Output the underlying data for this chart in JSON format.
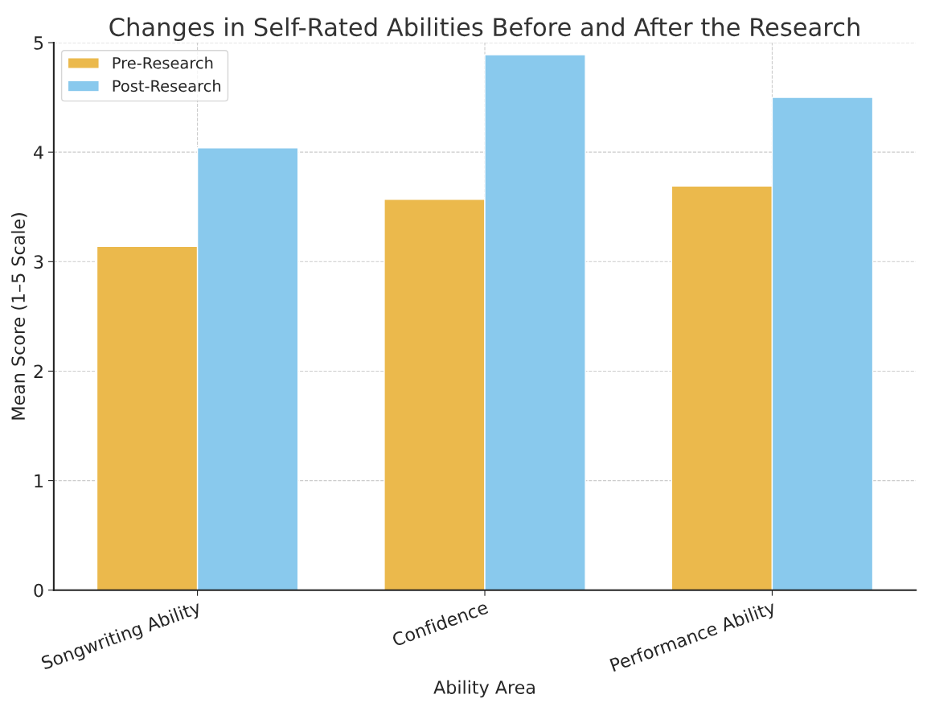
{
  "chart_data": {
    "type": "bar",
    "title": "Changes in Self-Rated Abilities Before and After the Research",
    "xlabel": "Ability Area",
    "ylabel": "Mean Score (1–5 Scale)",
    "categories": [
      "Songwriting Ability",
      "Confidence",
      "Performance Ability"
    ],
    "series": [
      {
        "name": "Pre-Research",
        "color": "#ebb94c",
        "values": [
          3.14,
          3.57,
          3.69
        ]
      },
      {
        "name": "Post-Research",
        "color": "#89c9ed",
        "values": [
          4.04,
          4.89,
          4.5
        ]
      }
    ],
    "ylim": [
      0,
      5
    ],
    "yticks": [
      0,
      1,
      2,
      3,
      4,
      5
    ],
    "grid": true,
    "legend": "top left"
  }
}
